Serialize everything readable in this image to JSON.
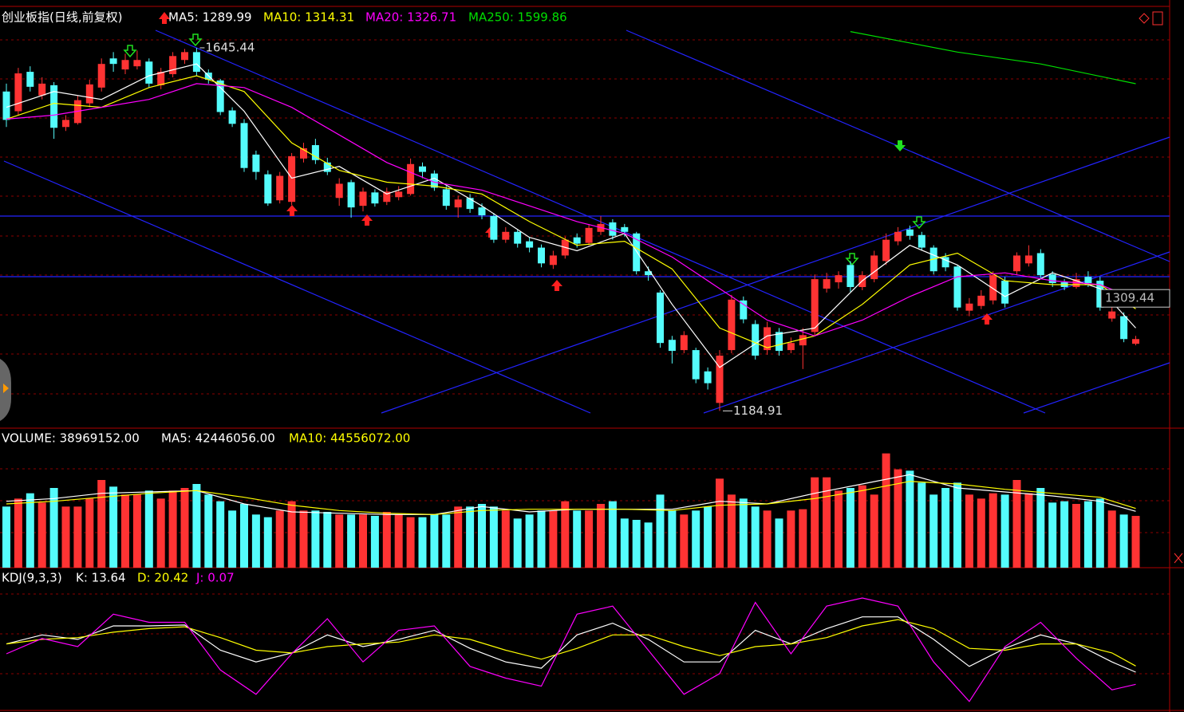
{
  "chart_data": [
    {
      "type": "candlestick",
      "title": "创业板指(日线,前复权)",
      "up_color": "#ff3333",
      "down_color": "#54fcfc",
      "ylim": [
        1165,
        1698
      ],
      "crosshair_value": 1309.44,
      "open": [
        1590,
        1565,
        1615,
        1585,
        1598,
        1545,
        1550,
        1575,
        1595,
        1632,
        1618,
        1622,
        1628,
        1598,
        1612,
        1630,
        1640,
        1614,
        1604,
        1566,
        1550,
        1510,
        1485,
        1452,
        1450,
        1505,
        1522,
        1500,
        1455,
        1475,
        1445,
        1462,
        1450,
        1456,
        1460,
        1495,
        1486,
        1466,
        1443,
        1455,
        1443,
        1432,
        1402,
        1412,
        1400,
        1392,
        1370,
        1382,
        1405,
        1398,
        1412,
        1424,
        1418,
        1410,
        1362,
        1335,
        1275,
        1262,
        1262,
        1235,
        1195,
        1262,
        1325,
        1295,
        1262,
        1285,
        1262,
        1268,
        1285,
        1340,
        1348,
        1370,
        1342,
        1352,
        1375,
        1400,
        1415,
        1408,
        1392,
        1380,
        1368,
        1312,
        1318,
        1325,
        1350,
        1362,
        1372,
        1385,
        1358,
        1348,
        1342,
        1355,
        1350,
        1302,
        1305,
        1270
      ],
      "high": [
        1600,
        1620,
        1622,
        1608,
        1602,
        1560,
        1585,
        1605,
        1632,
        1640,
        1638,
        1642,
        1632,
        1620,
        1640,
        1644,
        1645.44,
        1618,
        1606,
        1570,
        1555,
        1515,
        1490,
        1488,
        1512,
        1525,
        1530,
        1506,
        1480,
        1478,
        1468,
        1466,
        1468,
        1470,
        1505,
        1500,
        1490,
        1470,
        1458,
        1460,
        1448,
        1436,
        1418,
        1415,
        1405,
        1396,
        1388,
        1406,
        1410,
        1422,
        1432,
        1428,
        1422,
        1412,
        1368,
        1338,
        1280,
        1286,
        1265,
        1240,
        1262,
        1332,
        1330,
        1300,
        1298,
        1290,
        1278,
        1290,
        1358,
        1360,
        1362,
        1375,
        1362,
        1388,
        1410,
        1418,
        1420,
        1412,
        1395,
        1385,
        1370,
        1328,
        1338,
        1362,
        1355,
        1386,
        1395,
        1390,
        1362,
        1352,
        1360,
        1362,
        1355,
        1320,
        1310,
        1280
      ],
      "low": [
        1545,
        1560,
        1590,
        1580,
        1530,
        1540,
        1548,
        1570,
        1590,
        1615,
        1612,
        1618,
        1595,
        1593,
        1608,
        1625,
        1610,
        1600,
        1560,
        1545,
        1488,
        1478,
        1445,
        1448,
        1446,
        1500,
        1498,
        1484,
        1445,
        1430,
        1438,
        1444,
        1446,
        1452,
        1458,
        1480,
        1464,
        1440,
        1430,
        1436,
        1428,
        1398,
        1398,
        1392,
        1386,
        1367,
        1365,
        1378,
        1392,
        1395,
        1408,
        1402,
        1406,
        1358,
        1350,
        1265,
        1245,
        1258,
        1220,
        1212,
        1184.91,
        1258,
        1296,
        1250,
        1256,
        1255,
        1258,
        1238,
        1280,
        1335,
        1340,
        1336,
        1338,
        1348,
        1370,
        1395,
        1402,
        1388,
        1358,
        1362,
        1312,
        1305,
        1314,
        1320,
        1316,
        1358,
        1368,
        1352,
        1342,
        1338,
        1340,
        1342,
        1312,
        1298,
        1272,
        1268
      ],
      "close": [
        1554,
        1613,
        1596,
        1600,
        1544,
        1554,
        1579,
        1599,
        1625,
        1625,
        1630,
        1630,
        1600,
        1615,
        1635,
        1640,
        1615,
        1605,
        1564,
        1549,
        1493,
        1488,
        1448,
        1483,
        1508,
        1518,
        1503,
        1488,
        1473,
        1443,
        1463,
        1448,
        1463,
        1463,
        1498,
        1488,
        1468,
        1445,
        1453,
        1441,
        1433,
        1402,
        1412,
        1397,
        1392,
        1372,
        1382,
        1402,
        1397,
        1417,
        1422,
        1407,
        1412,
        1362,
        1357,
        1271,
        1261,
        1281,
        1225,
        1220,
        1255,
        1326,
        1301,
        1255,
        1291,
        1261,
        1271,
        1281,
        1352,
        1352,
        1357,
        1342,
        1357,
        1382,
        1402,
        1412,
        1407,
        1392,
        1362,
        1367,
        1316,
        1321,
        1331,
        1357,
        1321,
        1382,
        1382,
        1357,
        1347,
        1342,
        1352,
        1347,
        1316,
        1311,
        1276,
        1276
      ],
      "series": [
        {
          "name": "MA5: 1289.99",
          "color": "#ffffff",
          "x": [
            0,
            4,
            8,
            12,
            16,
            20,
            24,
            28,
            32,
            36,
            40,
            44,
            48,
            52,
            56,
            60,
            64,
            68,
            72,
            76,
            80,
            84,
            88,
            92,
            95
          ],
          "values": [
            1570,
            1590,
            1580,
            1610,
            1625,
            1565,
            1480,
            1495,
            1460,
            1480,
            1445,
            1405,
            1388,
            1410,
            1320,
            1240,
            1280,
            1290,
            1350,
            1395,
            1370,
            1330,
            1360,
            1340,
            1289.99
          ]
        },
        {
          "name": "MA10: 1314.31",
          "color": "#ffff00",
          "x": [
            0,
            4,
            8,
            12,
            16,
            20,
            24,
            28,
            32,
            36,
            40,
            44,
            48,
            52,
            56,
            60,
            64,
            68,
            72,
            76,
            80,
            84,
            88,
            92,
            95
          ],
          "values": [
            1555,
            1575,
            1570,
            1595,
            1610,
            1590,
            1525,
            1490,
            1475,
            1470,
            1460,
            1425,
            1395,
            1400,
            1365,
            1290,
            1265,
            1280,
            1320,
            1370,
            1385,
            1350,
            1345,
            1345,
            1314.31
          ]
        },
        {
          "name": "MA20: 1326.71",
          "color": "#ff00ff",
          "x": [
            0,
            4,
            8,
            12,
            16,
            20,
            24,
            28,
            32,
            36,
            40,
            44,
            48,
            52,
            56,
            60,
            64,
            68,
            72,
            76,
            80,
            84,
            88,
            92,
            95
          ],
          "values": [
            1555,
            1560,
            1570,
            1580,
            1600,
            1595,
            1570,
            1535,
            1500,
            1475,
            1465,
            1445,
            1425,
            1410,
            1380,
            1340,
            1300,
            1280,
            1300,
            1330,
            1355,
            1360,
            1350,
            1345,
            1326.71
          ]
        },
        {
          "name": "MA250: 1599.86",
          "color": "#00e000",
          "x": [
            71,
            80,
            87,
            95
          ],
          "values": [
            1666,
            1640,
            1625,
            1599.86
          ]
        }
      ]
    },
    {
      "type": "bar",
      "title": "VOLUME: 38969152.00",
      "ylim": [
        0,
        103200000
      ],
      "values": [
        46000000,
        52000000,
        56000000,
        49000000,
        60000000,
        46000000,
        46000000,
        52000000,
        66000000,
        61000000,
        55000000,
        55000000,
        58000000,
        52000000,
        58000000,
        60000000,
        63000000,
        55000000,
        50000000,
        43000000,
        48000000,
        40000000,
        38000000,
        43000000,
        50000000,
        43000000,
        43000000,
        42000000,
        40000000,
        40000000,
        40000000,
        39000000,
        42000000,
        40000000,
        38000000,
        38000000,
        40000000,
        40000000,
        46000000,
        46000000,
        48000000,
        46000000,
        43000000,
        37000000,
        40000000,
        43000000,
        43000000,
        50000000,
        43000000,
        43000000,
        48000000,
        50000000,
        37000000,
        36000000,
        34000000,
        55000000,
        43000000,
        40000000,
        43000000,
        46000000,
        67000000,
        55000000,
        52000000,
        46000000,
        43000000,
        37000000,
        43000000,
        44000000,
        68000000,
        68000000,
        58000000,
        60000000,
        62000000,
        55000000,
        86000000,
        74000000,
        73000000,
        64000000,
        55000000,
        60000000,
        64000000,
        55000000,
        52000000,
        56000000,
        55000000,
        66000000,
        56000000,
        60000000,
        49000000,
        50000000,
        48000000,
        50000000,
        52000000,
        43000000,
        40000000,
        38969152
      ],
      "series": [
        {
          "name": "MA5: 42446056.00",
          "color": "#ffffff",
          "x": [
            0,
            4,
            8,
            12,
            16,
            20,
            24,
            28,
            32,
            36,
            40,
            44,
            48,
            52,
            56,
            60,
            64,
            68,
            72,
            76,
            80,
            84,
            88,
            92,
            95
          ],
          "values": [
            50000000,
            52000000,
            56000000,
            57000000,
            58000000,
            48000000,
            42000000,
            41000000,
            40000000,
            40000000,
            46000000,
            42000000,
            44000000,
            44000000,
            44000000,
            50000000,
            48000000,
            56000000,
            63000000,
            70000000,
            60000000,
            57000000,
            54000000,
            50000000,
            42446056
          ]
        },
        {
          "name": "MA10: 44556072.00",
          "color": "#ffff00",
          "x": [
            0,
            4,
            8,
            12,
            16,
            20,
            24,
            28,
            32,
            36,
            40,
            44,
            48,
            52,
            56,
            60,
            64,
            68,
            72,
            76,
            80,
            84,
            88,
            92,
            95
          ],
          "values": [
            48000000,
            50000000,
            53000000,
            56000000,
            58000000,
            53000000,
            47000000,
            43000000,
            41000000,
            40000000,
            43000000,
            44000000,
            44000000,
            44000000,
            43000000,
            47000000,
            48000000,
            52000000,
            58000000,
            65000000,
            63000000,
            59000000,
            56000000,
            53000000,
            44556072
          ]
        }
      ]
    },
    {
      "type": "line",
      "title": "KDJ(9,3,3)",
      "ylim": [
        -28,
        127
      ],
      "series": [
        {
          "name": "K: 13.64",
          "color": "#ffffff",
          "x": [
            0,
            3,
            6,
            9,
            12,
            15,
            18,
            21,
            24,
            27,
            30,
            33,
            36,
            39,
            42,
            45,
            48,
            51,
            54,
            57,
            60,
            63,
            66,
            69,
            72,
            75,
            78,
            81,
            84,
            87,
            90,
            93,
            95
          ],
          "values": [
            45,
            55,
            50,
            65,
            65,
            66,
            38,
            25,
            35,
            55,
            42,
            50,
            60,
            40,
            25,
            18,
            55,
            68,
            50,
            25,
            25,
            60,
            45,
            62,
            75,
            75,
            50,
            20,
            40,
            55,
            45,
            25,
            13.64
          ]
        },
        {
          "name": "D: 20.42",
          "color": "#ffff00",
          "x": [
            0,
            3,
            6,
            9,
            12,
            15,
            18,
            21,
            24,
            27,
            30,
            33,
            36,
            39,
            42,
            45,
            48,
            51,
            54,
            57,
            60,
            63,
            66,
            69,
            72,
            75,
            78,
            81,
            84,
            87,
            90,
            93,
            95
          ],
          "values": [
            45,
            50,
            52,
            58,
            62,
            64,
            52,
            38,
            35,
            42,
            45,
            47,
            55,
            50,
            38,
            28,
            40,
            55,
            55,
            42,
            32,
            42,
            45,
            52,
            65,
            72,
            62,
            40,
            38,
            45,
            45,
            35,
            20.42
          ]
        },
        {
          "name": "J: 0.07",
          "color": "#ff00ff",
          "x": [
            0,
            3,
            6,
            9,
            12,
            15,
            18,
            21,
            24,
            27,
            30,
            33,
            36,
            39,
            42,
            45,
            48,
            51,
            54,
            57,
            60,
            63,
            66,
            69,
            72,
            75,
            78,
            81,
            84,
            87,
            90,
            93,
            95
          ],
          "values": [
            34,
            51,
            42,
            78,
            69,
            69,
            16,
            -11,
            34,
            73,
            25,
            60,
            65,
            20,
            7,
            -2,
            78,
            87,
            38,
            -11,
            12,
            91,
            34,
            87,
            96,
            87,
            25,
            -19,
            42,
            69,
            29,
            -6,
            0.07
          ]
        }
      ]
    }
  ]
}
